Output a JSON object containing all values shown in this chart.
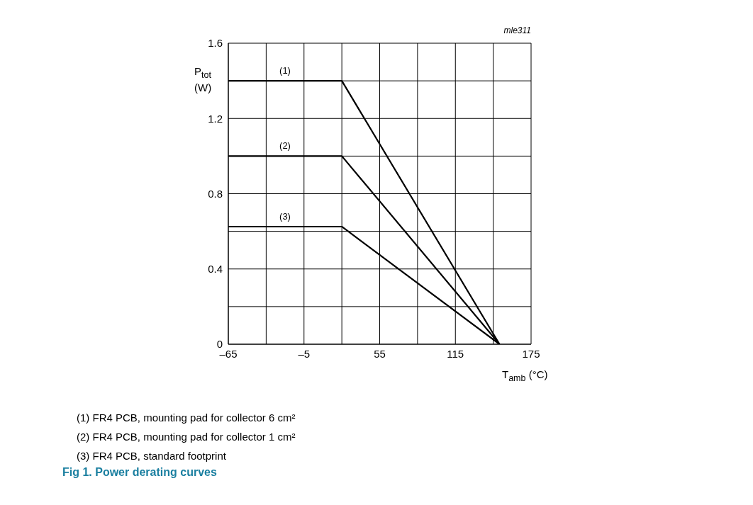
{
  "chart_data": {
    "type": "line",
    "title": "Fig 1. Power derating curves",
    "xlabel": "T$_{amb}$ (°C)",
    "ylabel": "P$_{tot}$ (W)",
    "annotations": [
      "mle311",
      "(1) FR4 PCB, mounting pad for collector 6 cm²",
      "(2) FR4 PCB, mounting pad for collector 1 cm²",
      "(3) FR4 PCB, standard footprint"
    ],
    "series": [
      {
        "name": "(1)",
        "color": "#000000",
        "x": [
          -65,
          25,
          150
        ],
        "values": [
          1.4,
          1.4,
          0
        ]
      },
      {
        "name": "(2)",
        "color": "#000000",
        "x": [
          -65,
          25,
          150
        ],
        "values": [
          1.0,
          1.0,
          0
        ]
      },
      {
        "name": "(3)",
        "color": "#000000",
        "x": [
          -65,
          25,
          150
        ],
        "values": [
          0.625,
          0.625,
          0
        ]
      }
    ],
    "xlim": [
      -65,
      175
    ],
    "xticks": [
      {
        "value": -65,
        "label": "–65"
      },
      {
        "value": -35,
        "label": null
      },
      {
        "value": -5,
        "label": "–5"
      },
      {
        "value": 25,
        "label": null
      },
      55,
      {
        "value": 85,
        "label": null
      },
      115,
      {
        "value": 145,
        "label": null
      },
      175
    ],
    "ylim": [
      0,
      1.6
    ],
    "yticks": [
      0,
      {
        "value": 0.2,
        "label": null
      },
      0.4,
      {
        "value": 0.6,
        "label": null
      },
      0.8,
      {
        "value": 1.0,
        "label": null
      },
      1.2,
      {
        "value": 1.4,
        "label": null
      },
      1.6
    ],
    "grid": true,
    "legend": false,
    "marker": "none",
    "line_style": "solid"
  }
}
